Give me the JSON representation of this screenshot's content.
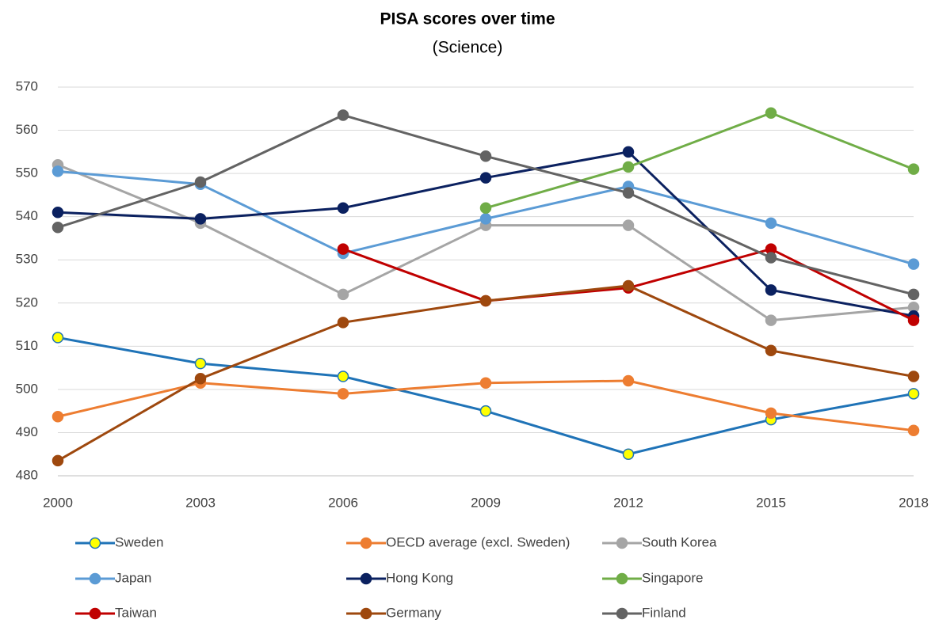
{
  "chart_data": {
    "type": "line",
    "title": "PISA scores over time",
    "subtitle": "(Science)",
    "x": [
      2000,
      2003,
      2006,
      2009,
      2012,
      2015,
      2018
    ],
    "xlim": [
      2000,
      2018
    ],
    "xticks": [
      2000,
      2003,
      2006,
      2009,
      2012,
      2015,
      2018
    ],
    "ylim": [
      480,
      570
    ],
    "yticks": [
      480,
      490,
      500,
      510,
      520,
      530,
      540,
      550,
      560,
      570
    ],
    "grid": true,
    "legend": "bottom",
    "series": [
      {
        "name": "Sweden",
        "color": "#1f73b7",
        "marker_fill": "#ffff00",
        "values": [
          512,
          506,
          503,
          495,
          485,
          493,
          499
        ]
      },
      {
        "name": "OECD average (excl. Sweden)",
        "color": "#ed7d31",
        "values": [
          493.7,
          501.5,
          499,
          501.5,
          502,
          494.5,
          490.5
        ]
      },
      {
        "name": "South Korea",
        "color": "#a5a5a5",
        "values": [
          552,
          538.5,
          522,
          538,
          538,
          516,
          519
        ]
      },
      {
        "name": "Japan",
        "color": "#5b9bd5",
        "values": [
          550.5,
          547.5,
          531.5,
          539.5,
          547,
          538.5,
          529
        ]
      },
      {
        "name": "Hong Kong",
        "color": "#0b2160",
        "values": [
          541,
          539.5,
          542,
          549,
          555,
          523,
          517
        ]
      },
      {
        "name": "Singapore",
        "color": "#70ad47",
        "values": [
          null,
          null,
          null,
          542,
          551.5,
          564,
          551
        ]
      },
      {
        "name": "Taiwan",
        "color": "#c00000",
        "values": [
          null,
          null,
          532.5,
          520.5,
          523.5,
          532.5,
          516
        ]
      },
      {
        "name": "Germany",
        "color": "#9e480e",
        "values": [
          483.5,
          502.5,
          515.5,
          520.5,
          524,
          509,
          503
        ]
      },
      {
        "name": "Finland",
        "color": "#636363",
        "values": [
          537.5,
          548,
          563.5,
          554,
          545.5,
          530.5,
          522
        ]
      }
    ]
  }
}
